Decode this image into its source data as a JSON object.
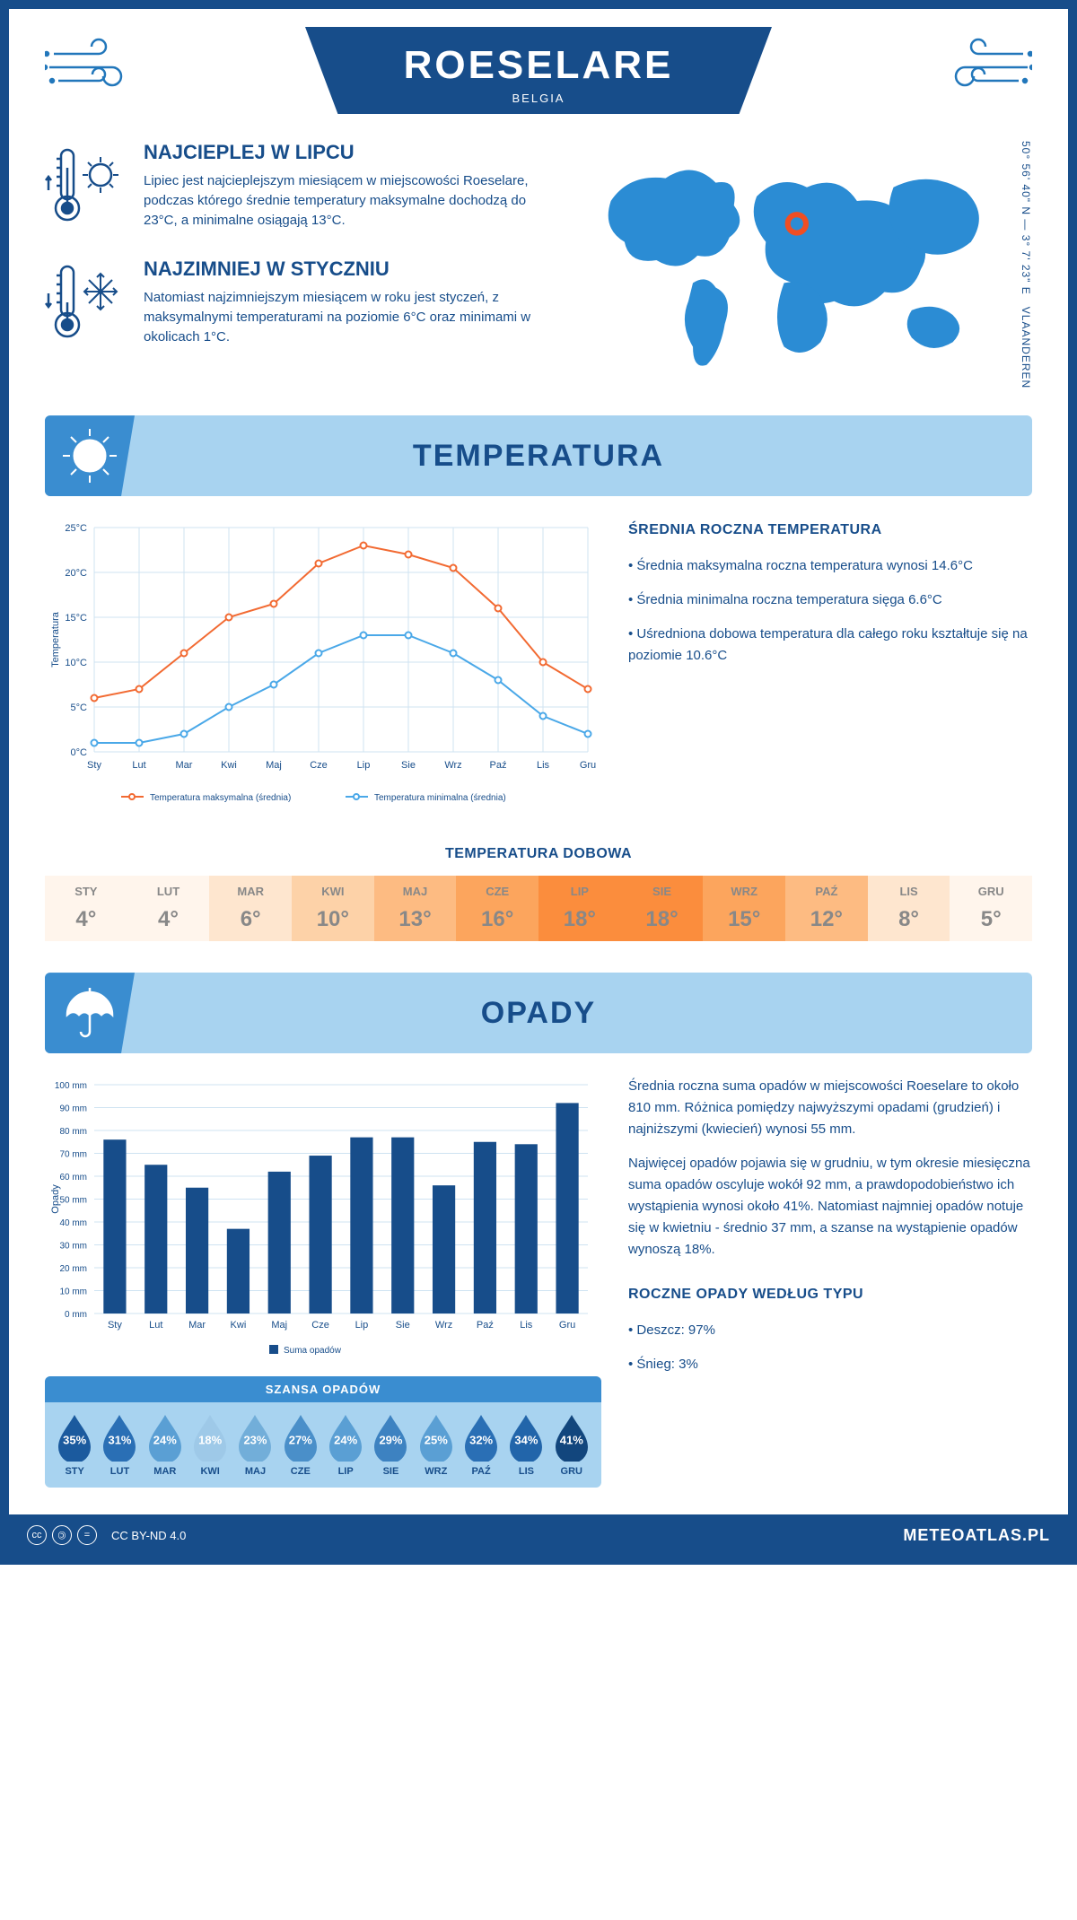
{
  "header": {
    "city": "ROESELARE",
    "country": "BELGIA",
    "coords": "50° 56' 40\" N — 3° 7' 23\" E",
    "region": "VLAANDEREN"
  },
  "facts": {
    "hot": {
      "title": "NAJCIEPLEJ W LIPCU",
      "text": "Lipiec jest najcieplejszym miesiącem w miejscowości Roeselare, podczas którego średnie temperatury maksymalne dochodzą do 23°C, a minimalne osiągają 13°C."
    },
    "cold": {
      "title": "NAJZIMNIEJ W STYCZNIU",
      "text": "Natomiast najzimniejszym miesiącem w roku jest styczeń, z maksymalnymi temperaturami na poziomie 6°C oraz minimami w okolicach 1°C."
    }
  },
  "sections": {
    "temp": "TEMPERATURA",
    "precip": "OPADY"
  },
  "months": [
    "Sty",
    "Lut",
    "Mar",
    "Kwi",
    "Maj",
    "Cze",
    "Lip",
    "Sie",
    "Wrz",
    "Paź",
    "Lis",
    "Gru"
  ],
  "months_upper": [
    "STY",
    "LUT",
    "MAR",
    "KWI",
    "MAJ",
    "CZE",
    "LIP",
    "SIE",
    "WRZ",
    "PAŹ",
    "LIS",
    "GRU"
  ],
  "temp_chart": {
    "type": "line",
    "ylabel": "Temperatura",
    "ylim": [
      0,
      25
    ],
    "ytick_step": 5,
    "max_values": [
      6,
      7,
      11,
      15,
      16.5,
      21,
      23,
      22,
      20.5,
      16,
      10,
      7
    ],
    "min_values": [
      1,
      1,
      2,
      5,
      7.5,
      11,
      13,
      13,
      11,
      8,
      4,
      2
    ],
    "max_color": "#f26a32",
    "min_color": "#4aa8e8",
    "grid_color": "#cfe3f2",
    "bg": "#ffffff",
    "legend_max": "Temperatura maksymalna (średnia)",
    "legend_min": "Temperatura minimalna (średnia)"
  },
  "temp_info": {
    "title": "ŚREDNIA ROCZNA TEMPERATURA",
    "b1": "• Średnia maksymalna roczna temperatura wynosi 14.6°C",
    "b2": "• Średnia minimalna roczna temperatura sięga 6.6°C",
    "b3": "• Uśredniona dobowa temperatura dla całego roku kształtuje się na poziomie 10.6°C"
  },
  "daily": {
    "title": "TEMPERATURA DOBOWA",
    "values": [
      "4°",
      "4°",
      "6°",
      "10°",
      "13°",
      "16°",
      "18°",
      "18°",
      "15°",
      "12°",
      "8°",
      "5°"
    ],
    "colors": [
      "#fff5ec",
      "#fff5ec",
      "#fee6cf",
      "#fdd2a8",
      "#fdbb82",
      "#fca55d",
      "#fb8d3d",
      "#fb8d3d",
      "#fca55d",
      "#fdbb82",
      "#fee6cf",
      "#fff5ec"
    ]
  },
  "precip_chart": {
    "type": "bar",
    "ylabel": "Opady",
    "ylim": [
      0,
      100
    ],
    "ytick_step": 10,
    "values": [
      76,
      65,
      55,
      37,
      62,
      69,
      77,
      77,
      56,
      75,
      74,
      92
    ],
    "bar_color": "#174d8a",
    "grid_color": "#cfe3f2",
    "legend": "Suma opadów"
  },
  "precip_info": {
    "p1": "Średnia roczna suma opadów w miejscowości Roeselare to około 810 mm. Różnica pomiędzy najwyższymi opadami (grudzień) i najniższymi (kwiecień) wynosi 55 mm.",
    "p2": "Najwięcej opadów pojawia się w grudniu, w tym okresie miesięczna suma opadów oscyluje wokół 92 mm, a prawdopodobieństwo ich wystąpienia wynosi około 41%. Natomiast najmniej opadów notuje się w kwietniu - średnio 37 mm, a szanse na wystąpienie opadów wynoszą 18%.",
    "type_title": "ROCZNE OPADY WEDŁUG TYPU",
    "type1": "• Deszcz: 97%",
    "type2": "• Śnieg: 3%"
  },
  "chance": {
    "title": "SZANSA OPADÓW",
    "values": [
      "35%",
      "31%",
      "24%",
      "18%",
      "23%",
      "27%",
      "24%",
      "29%",
      "25%",
      "32%",
      "34%",
      "41%"
    ],
    "colors": [
      "#1b5a9e",
      "#2a6fb5",
      "#5a9fd4",
      "#9ec9e8",
      "#72aed9",
      "#4a8fc9",
      "#5a9fd4",
      "#3d82c1",
      "#5a9fd4",
      "#2a6fb5",
      "#2265aa",
      "#12467d"
    ]
  },
  "footer": {
    "license": "CC BY-ND 4.0",
    "brand": "METEOATLAS.PL"
  }
}
